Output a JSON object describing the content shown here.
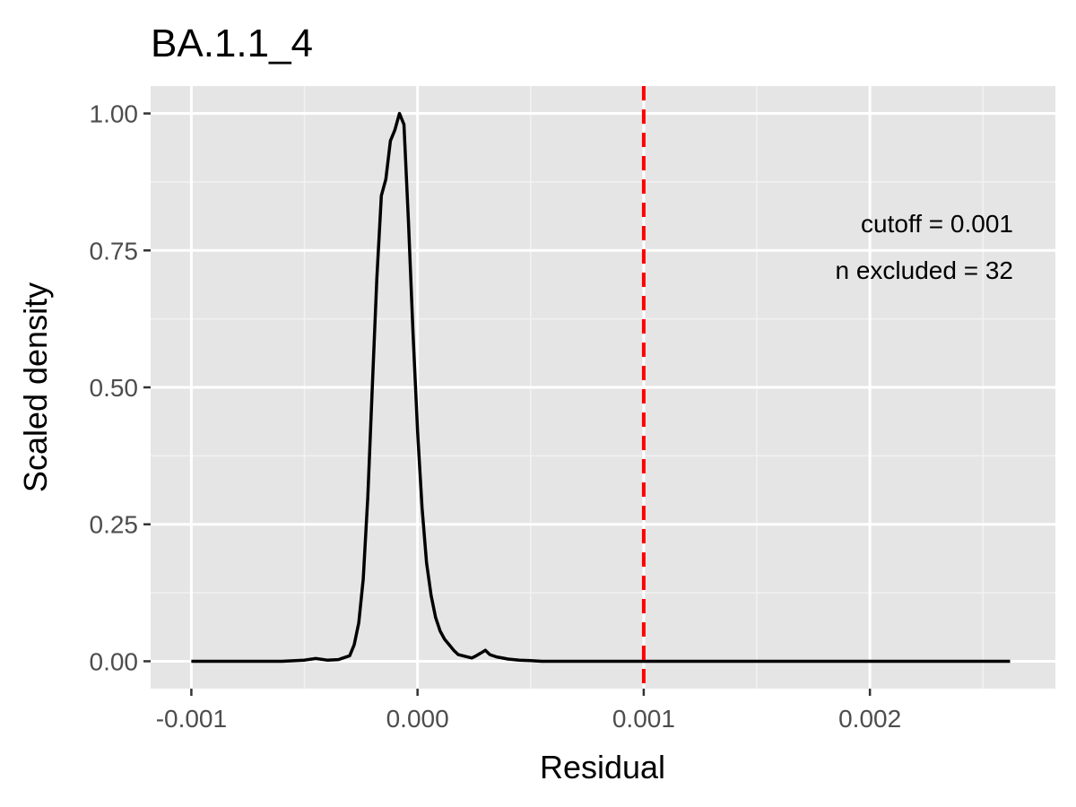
{
  "chart_data": {
    "type": "line",
    "title": "BA.1.1_4",
    "xlabel": "Residual",
    "ylabel": "Scaled density",
    "xlim": [
      -0.00118,
      0.00282
    ],
    "ylim": [
      -0.05,
      1.05
    ],
    "x_ticks": [
      -0.001,
      0.0,
      0.001,
      0.002
    ],
    "x_tick_labels": [
      "-0.001",
      "0.000",
      "0.001",
      "0.002"
    ],
    "y_ticks": [
      0.0,
      0.25,
      0.5,
      0.75,
      1.0
    ],
    "y_tick_labels": [
      "0.00",
      "0.25",
      "0.50",
      "0.75",
      "1.00"
    ],
    "grid": true,
    "panel_background": "#e5e5e5",
    "series": [
      {
        "color": "#000000",
        "x": [
          -0.001,
          -0.0008,
          -0.0006,
          -0.0005,
          -0.00045,
          -0.0004,
          -0.00035,
          -0.0003,
          -0.00028,
          -0.00026,
          -0.00024,
          -0.00022,
          -0.0002,
          -0.00018,
          -0.00016,
          -0.00014,
          -0.00012,
          -0.0001,
          -8e-05,
          -6e-05,
          -4e-05,
          -2e-05,
          0.0,
          2e-05,
          4e-05,
          6e-05,
          8e-05,
          0.0001,
          0.00012,
          0.00014,
          0.00016,
          0.00018,
          0.0002,
          0.00022,
          0.00024,
          0.00026,
          0.00028,
          0.0003,
          0.00032,
          0.00035,
          0.0004,
          0.00045,
          0.0005,
          0.00055,
          0.0006,
          0.00065,
          0.0007,
          0.00075,
          0.0008,
          0.0009,
          0.001,
          0.0015,
          0.002,
          0.0025,
          0.00262
        ],
        "y": [
          0.0,
          0.0,
          0.0,
          0.002,
          0.005,
          0.002,
          0.003,
          0.01,
          0.03,
          0.07,
          0.15,
          0.3,
          0.5,
          0.7,
          0.85,
          0.88,
          0.95,
          0.97,
          1.0,
          0.98,
          0.8,
          0.6,
          0.42,
          0.28,
          0.18,
          0.12,
          0.08,
          0.055,
          0.04,
          0.03,
          0.02,
          0.012,
          0.01,
          0.008,
          0.006,
          0.01,
          0.015,
          0.02,
          0.012,
          0.008,
          0.004,
          0.002,
          0.001,
          0.0,
          0.0,
          0.0,
          0.0,
          0.0,
          0.0,
          0.0,
          0.0,
          0.0,
          0.0,
          0.0,
          0.0
        ]
      }
    ],
    "vline": {
      "x": 0.001,
      "color": "#ff0000",
      "style": "dashed"
    },
    "annotations": [
      "cutoff = 0.001",
      "n excluded = 32"
    ]
  }
}
